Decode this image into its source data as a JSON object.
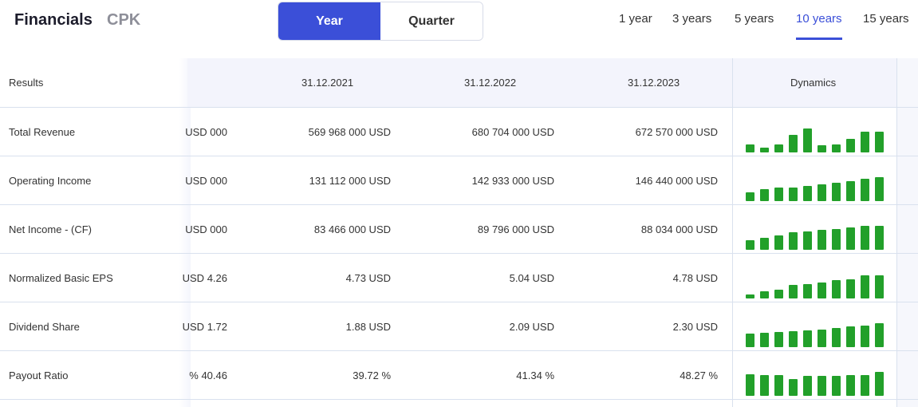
{
  "header": {
    "title": "Financials",
    "ticker": "CPK",
    "toggle": {
      "year_label": "Year",
      "quarter_label": "Quarter",
      "selected": "Year"
    },
    "periods": [
      "1 year",
      "3 years",
      "5 years",
      "10 years",
      "15 years"
    ],
    "selected_period": "10 years"
  },
  "table": {
    "headers": {
      "results": "Results",
      "col1": "31.12.2021",
      "col2": "31.12.2022",
      "col3": "31.12.2023",
      "dynamics": "Dynamics"
    },
    "rows": [
      {
        "label": "Total Revenue",
        "c0": "000 USD",
        "c1": "569 968 000 USD",
        "c2": "680 704 000 USD",
        "c3": "672 570 000 USD",
        "spark": [
          0.33,
          0.2,
          0.33,
          0.73,
          1.0,
          0.3,
          0.33,
          0.57,
          0.87,
          0.87
        ]
      },
      {
        "label": "Operating Income",
        "c0": "000 USD",
        "c1": "131 112 000 USD",
        "c2": "142 933 000 USD",
        "c3": "146 440 000 USD",
        "spark": [
          0.36,
          0.5,
          0.57,
          0.57,
          0.64,
          0.71,
          0.75,
          0.82,
          0.93,
          1.0
        ]
      },
      {
        "label": "Net Income - (CF)",
        "c0": "000 USD",
        "c1": "83 466 000 USD",
        "c2": "89 796 000 USD",
        "c3": "88 034 000 USD",
        "spark": [
          0.4,
          0.5,
          0.6,
          0.73,
          0.77,
          0.83,
          0.87,
          0.93,
          1.0,
          1.0
        ]
      },
      {
        "label": "Normalized Basic EPS",
        "c0": "4.26 USD",
        "c1": "4.73 USD",
        "c2": "5.04 USD",
        "c3": "4.78 USD",
        "spark": [
          0.15,
          0.3,
          0.35,
          0.55,
          0.6,
          0.65,
          0.75,
          0.8,
          0.95,
          0.95
        ]
      },
      {
        "label": "Dividend Share",
        "c0": "1.72 USD",
        "c1": "1.88 USD",
        "c2": "2.09 USD",
        "c3": "2.30 USD",
        "spark": [
          0.56,
          0.59,
          0.63,
          0.67,
          0.7,
          0.74,
          0.81,
          0.85,
          0.89,
          1.0
        ]
      },
      {
        "label": "Payout Ratio",
        "c0": "40.46 %",
        "c1": "39.72 %",
        "c2": "41.34 %",
        "c3": "48.27 %",
        "spark": [
          0.89,
          0.86,
          0.86,
          0.71,
          0.82,
          0.82,
          0.82,
          0.86,
          0.86,
          1.0
        ]
      }
    ]
  },
  "colors": {
    "accent": "#3b4fd8",
    "bar": "#22a02a",
    "header_bg": "#f3f4fc"
  }
}
